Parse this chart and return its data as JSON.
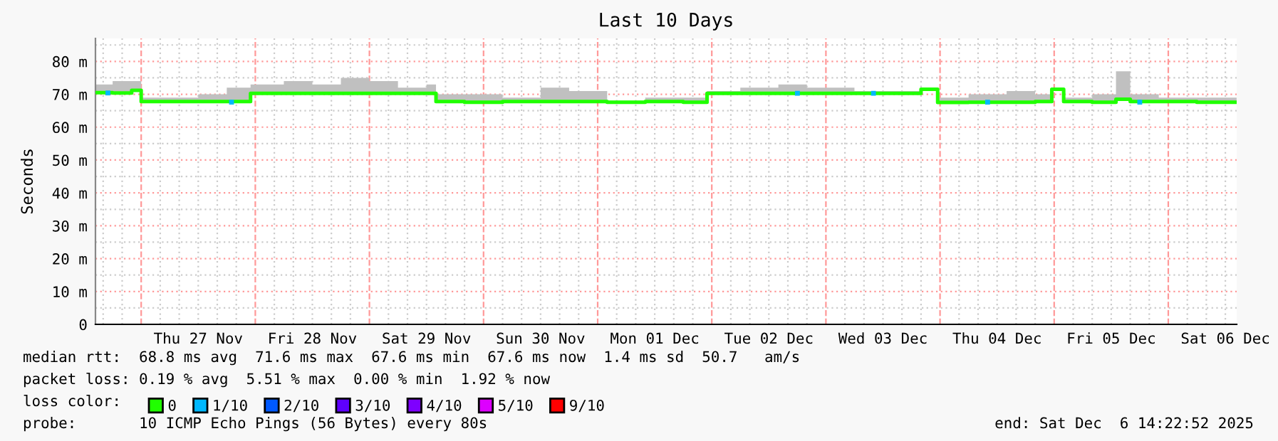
{
  "chart_data": {
    "type": "step",
    "title": "Last 10 Days",
    "ylabel": "Seconds",
    "xlim": [
      "2025-11-26T14:23",
      "2025-12-06T14:23"
    ],
    "xticks": [
      {
        "value": "2025-11-26T16:00",
        "label": null
      },
      {
        "value": "2025-11-26T20:00",
        "label": null
      },
      {
        "value": "2025-11-27T04:00",
        "label": null
      },
      {
        "value": "2025-11-27T08:00",
        "label": null
      },
      {
        "value": "2025-11-27T12:00",
        "label": "Thu 27 Nov"
      },
      {
        "value": "2025-11-27T16:00",
        "label": null
      },
      {
        "value": "2025-11-27T20:00",
        "label": null
      },
      {
        "value": "2025-11-28T04:00",
        "label": null
      },
      {
        "value": "2025-11-28T08:00",
        "label": null
      },
      {
        "value": "2025-11-28T12:00",
        "label": "Fri 28 Nov"
      },
      {
        "value": "2025-11-28T16:00",
        "label": null
      },
      {
        "value": "2025-11-28T20:00",
        "label": null
      },
      {
        "value": "2025-11-29T04:00",
        "label": null
      },
      {
        "value": "2025-11-29T08:00",
        "label": null
      },
      {
        "value": "2025-11-29T12:00",
        "label": "Sat 29 Nov"
      },
      {
        "value": "2025-11-29T16:00",
        "label": null
      },
      {
        "value": "2025-11-29T20:00",
        "label": null
      },
      {
        "value": "2025-11-30T04:00",
        "label": null
      },
      {
        "value": "2025-11-30T08:00",
        "label": null
      },
      {
        "value": "2025-11-30T12:00",
        "label": "Sun 30 Nov"
      },
      {
        "value": "2025-11-30T16:00",
        "label": null
      },
      {
        "value": "2025-11-30T20:00",
        "label": null
      },
      {
        "value": "2025-12-01T04:00",
        "label": null
      },
      {
        "value": "2025-12-01T08:00",
        "label": null
      },
      {
        "value": "2025-12-01T12:00",
        "label": "Mon 01 Dec"
      },
      {
        "value": "2025-12-01T16:00",
        "label": null
      },
      {
        "value": "2025-12-01T20:00",
        "label": null
      },
      {
        "value": "2025-12-02T04:00",
        "label": null
      },
      {
        "value": "2025-12-02T08:00",
        "label": null
      },
      {
        "value": "2025-12-02T12:00",
        "label": "Tue 02 Dec"
      },
      {
        "value": "2025-12-02T16:00",
        "label": null
      },
      {
        "value": "2025-12-02T20:00",
        "label": null
      },
      {
        "value": "2025-12-03T04:00",
        "label": null
      },
      {
        "value": "2025-12-03T08:00",
        "label": null
      },
      {
        "value": "2025-12-03T12:00",
        "label": "Wed 03 Dec"
      },
      {
        "value": "2025-12-03T16:00",
        "label": null
      },
      {
        "value": "2025-12-03T20:00",
        "label": null
      },
      {
        "value": "2025-12-04T04:00",
        "label": null
      },
      {
        "value": "2025-12-04T08:00",
        "label": null
      },
      {
        "value": "2025-12-04T12:00",
        "label": "Thu 04 Dec"
      },
      {
        "value": "2025-12-04T16:00",
        "label": null
      },
      {
        "value": "2025-12-04T20:00",
        "label": null
      },
      {
        "value": "2025-12-05T04:00",
        "label": null
      },
      {
        "value": "2025-12-05T08:00",
        "label": null
      },
      {
        "value": "2025-12-05T12:00",
        "label": "Fri 05 Dec"
      },
      {
        "value": "2025-12-05T16:00",
        "label": null
      },
      {
        "value": "2025-12-05T20:00",
        "label": null
      },
      {
        "value": "2025-12-06T04:00",
        "label": null
      },
      {
        "value": "2025-12-06T08:00",
        "label": null
      },
      {
        "value": "2025-12-06T12:00",
        "label": "Sat 06 Dec"
      }
    ],
    "ylim": [
      0,
      87
    ],
    "yticks": [
      0,
      {
        "value": 5,
        "label": null
      },
      {
        "value": 10,
        "label": "10 m"
      },
      {
        "value": 15,
        "label": null
      },
      {
        "value": 20,
        "label": "20 m"
      },
      {
        "value": 25,
        "label": null
      },
      {
        "value": 30,
        "label": "30 m"
      },
      {
        "value": 35,
        "label": null
      },
      {
        "value": 40,
        "label": "40 m"
      },
      {
        "value": 45,
        "label": null
      },
      {
        "value": 50,
        "label": "50 m"
      },
      {
        "value": 55,
        "label": null
      },
      {
        "value": 60,
        "label": "60 m"
      },
      {
        "value": 65,
        "label": null
      },
      {
        "value": 70,
        "label": "70 m"
      },
      {
        "value": 75,
        "label": null
      },
      {
        "value": 80,
        "label": "80 m"
      },
      {
        "value": 85,
        "label": null
      }
    ],
    "grid": true,
    "legend": "bottom",
    "legend_title": "loss color:",
    "ref_lines": [
      {
        "axis": "x",
        "value": "2025-11-27T00:00",
        "color": "#ff9999",
        "line_style": "dashed"
      },
      {
        "axis": "x",
        "value": "2025-11-28T00:00",
        "color": "#ff9999",
        "line_style": "dashed"
      },
      {
        "axis": "x",
        "value": "2025-11-29T00:00",
        "color": "#ff9999",
        "line_style": "dashed"
      },
      {
        "axis": "x",
        "value": "2025-11-30T00:00",
        "color": "#ff9999",
        "line_style": "dashed"
      },
      {
        "axis": "x",
        "value": "2025-12-01T00:00",
        "color": "#ff9999",
        "line_style": "dashed"
      },
      {
        "axis": "x",
        "value": "2025-12-02T00:00",
        "color": "#ff9999",
        "line_style": "dashed"
      },
      {
        "axis": "x",
        "value": "2025-12-03T00:00",
        "color": "#ff9999",
        "line_style": "dashed"
      },
      {
        "axis": "x",
        "value": "2025-12-04T00:00",
        "color": "#ff9999",
        "line_style": "dashed"
      },
      {
        "axis": "x",
        "value": "2025-12-05T00:00",
        "color": "#ff9999",
        "line_style": "dashed"
      },
      {
        "axis": "x",
        "value": "2025-12-06T00:00",
        "color": "#ff9999",
        "line_style": "dashed"
      }
    ],
    "series": [
      {
        "name": "0",
        "color": "#20ff00",
        "x": [
          "2025-11-26T14:23",
          "2025-11-26T18:00",
          "2025-11-26T22:00",
          "2025-11-27T00:00",
          "2025-11-27T06:00",
          "2025-11-27T12:00",
          "2025-11-27T18:00",
          "2025-11-27T23:00",
          "2025-11-28T06:00",
          "2025-11-28T12:00",
          "2025-11-28T18:00",
          "2025-11-29T00:00",
          "2025-11-29T06:00",
          "2025-11-29T12:00",
          "2025-11-29T14:00",
          "2025-11-29T20:00",
          "2025-11-30T04:00",
          "2025-11-30T12:00",
          "2025-11-30T18:00",
          "2025-12-01T02:00",
          "2025-12-01T10:00",
          "2025-12-01T18:00",
          "2025-12-01T23:00",
          "2025-12-02T06:00",
          "2025-12-02T14:00",
          "2025-12-02T20:00",
          "2025-12-03T06:00",
          "2025-12-03T14:00",
          "2025-12-03T20:00",
          "2025-12-03T23:30",
          "2025-12-04T06:00",
          "2025-12-04T14:00",
          "2025-12-04T20:00",
          "2025-12-04T23:30",
          "2025-12-05T02:00",
          "2025-12-05T08:00",
          "2025-12-05T13:00",
          "2025-12-05T16:00",
          "2025-12-05T22:00",
          "2025-12-06T06:00",
          "2025-12-06T14:22"
        ],
        "values": [
          70.5,
          70.4,
          71.2,
          67.8,
          67.8,
          67.8,
          67.8,
          70.3,
          70.3,
          70.3,
          70.3,
          70.3,
          70.3,
          70.3,
          67.8,
          67.6,
          67.8,
          67.8,
          67.8,
          67.6,
          67.8,
          67.6,
          70.3,
          70.3,
          70.3,
          70.3,
          70.3,
          70.3,
          71.5,
          67.5,
          67.6,
          67.6,
          67.8,
          71.5,
          67.8,
          67.6,
          68.5,
          67.8,
          67.8,
          67.6,
          67.6
        ],
        "lower": [
          70.5,
          70.4,
          71.2,
          67.8,
          67.8,
          67.8,
          67.8,
          70.3,
          70.3,
          70.3,
          70.3,
          70.3,
          70.3,
          70.3,
          67.8,
          67.6,
          67.8,
          67.8,
          67.8,
          67.6,
          67.8,
          67.6,
          70.3,
          70.3,
          70.3,
          70.3,
          70.3,
          70.3,
          71.5,
          67.5,
          67.6,
          67.6,
          67.8,
          71.5,
          67.8,
          67.6,
          68.5,
          67.8,
          67.8,
          67.6,
          67.6
        ],
        "upper": [
          73,
          74,
          74,
          69,
          69,
          70,
          72,
          73,
          74,
          73,
          75,
          74,
          72,
          73,
          70,
          70,
          69,
          72,
          71,
          68,
          69,
          69,
          71,
          72,
          73,
          72,
          71,
          71,
          72,
          69,
          70,
          71,
          70,
          72,
          69,
          70,
          77,
          70,
          69,
          69,
          68
        ]
      },
      {
        "name": "1/10",
        "color": "#00b8ff",
        "type": "scatter",
        "marker": "square",
        "x": [
          "2025-11-26T17:00",
          "2025-11-27T19:00",
          "2025-12-02T18:00",
          "2025-12-03T10:00",
          "2025-12-04T10:00",
          "2025-12-05T18:00"
        ],
        "values": [
          70.4,
          67.6,
          70.3,
          70.3,
          67.6,
          67.6
        ]
      },
      {
        "name": "2/10",
        "color": "#0059ff",
        "type": "scatter",
        "marker": "square"
      },
      {
        "name": "3/10",
        "color": "#5e00ff",
        "type": "scatter",
        "marker": "square"
      },
      {
        "name": "4/10",
        "color": "#7e00ff",
        "type": "scatter",
        "marker": "square"
      },
      {
        "name": "5/10",
        "color": "#dd00ff",
        "type": "scatter",
        "marker": "square"
      },
      {
        "name": "9/10",
        "color": "#ff0000",
        "type": "scatter",
        "marker": "square"
      }
    ],
    "annotations": [
      "median rtt:  68.8 ms avg  71.6 ms max  67.6 ms min  67.6 ms now  1.4 ms sd  50.7   am/s",
      "packet loss: 0.19 % avg  5.51 % max  0.00 % min  1.92 % now",
      "probe:       10 ICMP Echo Pings (56 Bytes) every 80s",
      "end: Sat Dec  6 14:22:52 2025"
    ]
  }
}
